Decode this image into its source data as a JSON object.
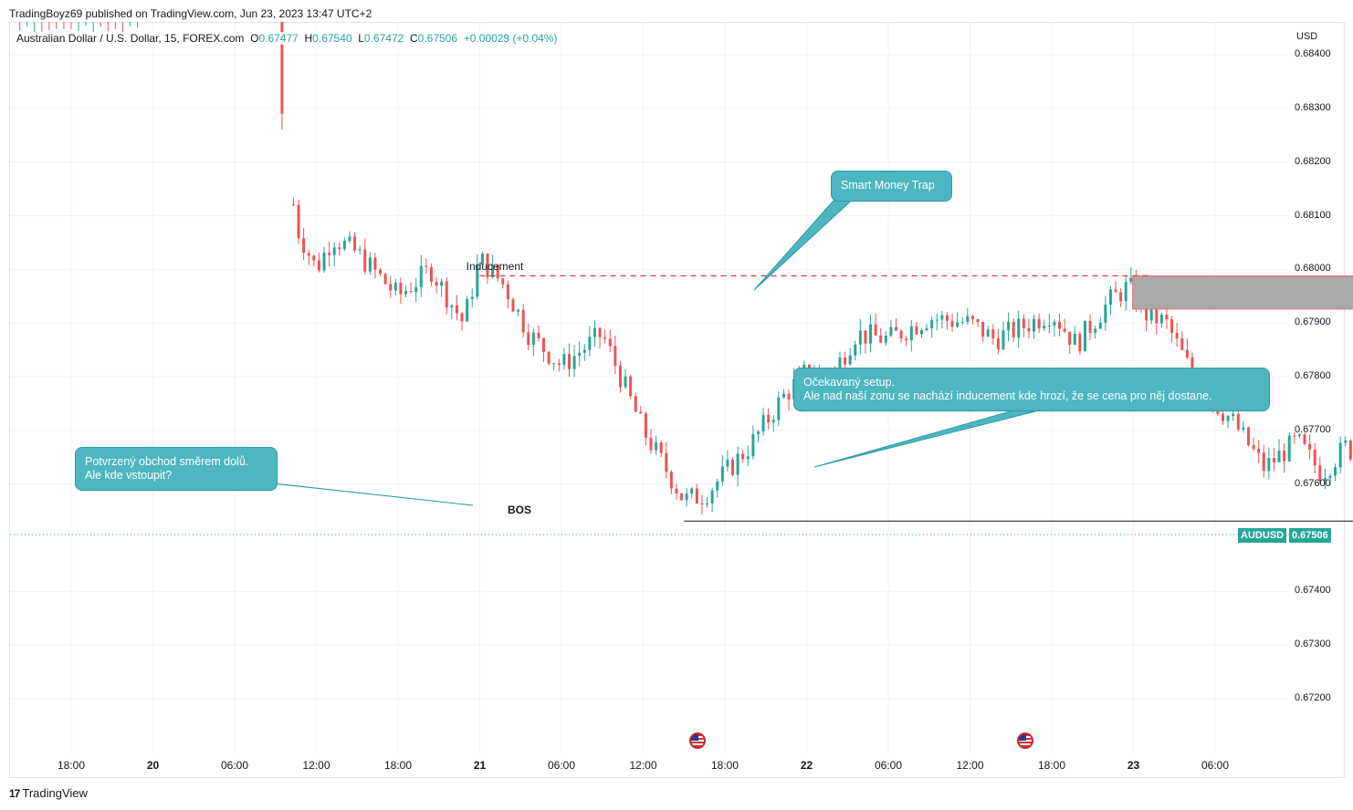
{
  "header": {
    "publish_line": "TradingBoyz69 published on TradingView.com, Jun 23, 2023 13:47 UTC+2"
  },
  "symbol_bar": {
    "name": "Australian Dollar / U.S. Dollar, 15, FOREX.com",
    "o_label": "O",
    "o": "0.67477",
    "h_label": "H",
    "h": "0.67540",
    "l_label": "L",
    "l": "0.67472",
    "c_label": "C",
    "c": "0.67506",
    "change": "+0.00029 (+0.04%)"
  },
  "price_axis": {
    "currency": "USD",
    "labels": [
      "0.68400",
      "0.68300",
      "0.68200",
      "0.68100",
      "0.68000",
      "0.67900",
      "0.67800",
      "0.67700",
      "0.67600",
      "0.67400",
      "0.67300",
      "0.67200"
    ]
  },
  "time_axis": {
    "labels": [
      "18:00",
      "20",
      "06:00",
      "12:00",
      "18:00",
      "21",
      "06:00",
      "12:00",
      "18:00",
      "22",
      "06:00",
      "12:00",
      "18:00",
      "23",
      "06:00"
    ]
  },
  "price_tag": {
    "symbol": "AUDUSD",
    "price": "0.67506"
  },
  "annotations": {
    "inducement": "Inducement",
    "bos": "BOS",
    "callout_left": [
      "Potvrzený obchod směrem dolů.",
      "Ale kde vstoupit?"
    ],
    "callout_trap": "Smart Money Trap",
    "callout_setup": [
      "Očekavaný setup.",
      "Ale nad naší zonu se nachází inducement kde hrozí, že se cena pro něj dostane."
    ]
  },
  "footer": {
    "logo": "17",
    "brand": "TradingView"
  },
  "colors": {
    "up": "#26a69a",
    "down": "#ef5350",
    "callout": "#4db6c0",
    "zone": "#a9a9a9",
    "projection": "#1e9e96"
  },
  "chart_data": {
    "type": "candlestick",
    "symbol": "AUDUSD",
    "timeframe": "15",
    "ylim": [
      0.6713,
      0.6842
    ],
    "last_price": 0.67506,
    "time_ticks": [
      "18:00",
      "20",
      "06:00",
      "12:00",
      "18:00",
      "21",
      "06:00",
      "12:00",
      "18:00",
      "22",
      "06:00",
      "12:00",
      "18:00",
      "23",
      "06:00"
    ],
    "path": [
      [
        0,
        0.6842
      ],
      [
        2.5,
        0.6842
      ],
      [
        2.75,
        0.6808
      ],
      [
        3.0,
        0.68
      ],
      [
        3.2,
        0.6806
      ],
      [
        3.5,
        0.6803
      ],
      [
        4.0,
        0.6795
      ],
      [
        4.4,
        0.68
      ],
      [
        4.8,
        0.679
      ],
      [
        5.0,
        0.6802
      ],
      [
        5.3,
        0.6797
      ],
      [
        5.6,
        0.6788
      ],
      [
        6.0,
        0.6782
      ],
      [
        6.5,
        0.6788
      ],
      [
        7.0,
        0.677
      ],
      [
        7.5,
        0.6757
      ],
      [
        7.75,
        0.6758
      ],
      [
        8.0,
        0.6762
      ],
      [
        8.3,
        0.6767
      ],
      [
        8.7,
        0.6776
      ],
      [
        9.0,
        0.6781
      ],
      [
        9.3,
        0.678
      ],
      [
        9.6,
        0.6788
      ],
      [
        10.0,
        0.6787
      ],
      [
        10.5,
        0.6791
      ],
      [
        11.0,
        0.679
      ],
      [
        11.3,
        0.6787
      ],
      [
        11.6,
        0.6789
      ],
      [
        12.0,
        0.6792
      ],
      [
        12.3,
        0.6786
      ],
      [
        12.7,
        0.6794
      ],
      [
        12.95,
        0.6797
      ],
      [
        13.1,
        0.6792
      ],
      [
        13.4,
        0.679
      ],
      [
        13.8,
        0.6778
      ],
      [
        14.2,
        0.6772
      ],
      [
        14.6,
        0.6763
      ],
      [
        15.0,
        0.6768
      ],
      [
        15.3,
        0.6762
      ],
      [
        15.6,
        0.6767
      ],
      [
        16.0,
        0.6762
      ],
      [
        16.3,
        0.6757
      ],
      [
        16.7,
        0.6762
      ],
      [
        16.9,
        0.6753
      ],
      [
        17.0,
        0.67506
      ]
    ],
    "levels": {
      "inducement": 0.67988,
      "bos": 0.67531,
      "supply_zone": [
        0.67926,
        0.67988
      ]
    },
    "projection": {
      "label": "Očekavaný setup.",
      "path": [
        [
          17.1,
          0.6749
        ],
        [
          20.1,
          0.67955
        ],
        [
          22.8,
          0.6733
        ]
      ]
    }
  }
}
